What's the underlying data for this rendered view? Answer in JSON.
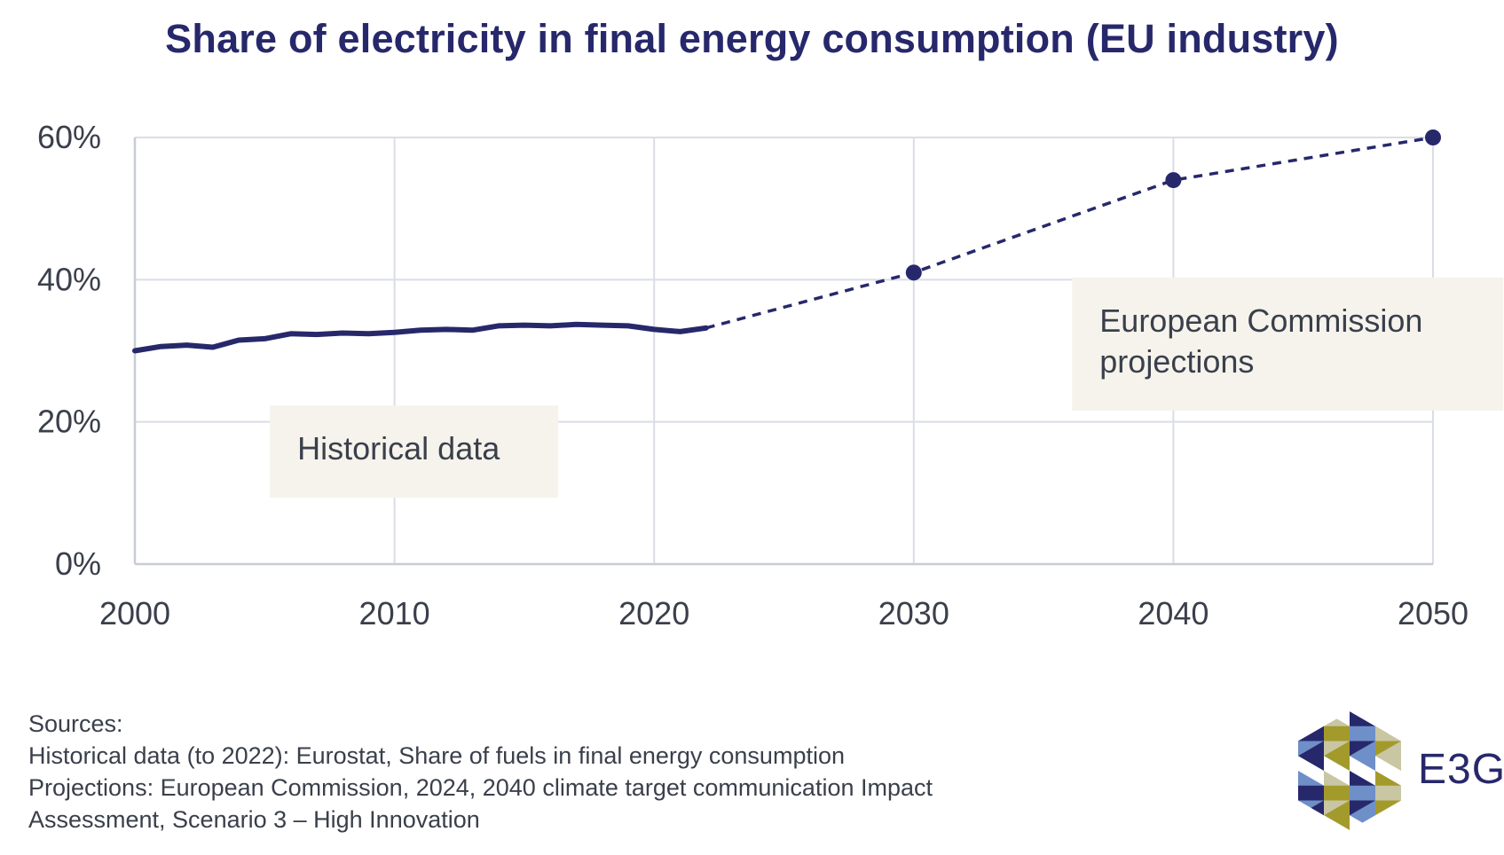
{
  "chart_data": {
    "type": "line",
    "title": "Share of electricity in final energy consumption (EU industry)",
    "xlim": [
      2000,
      2050
    ],
    "ylim": [
      0,
      60
    ],
    "x_ticks": [
      2000,
      2010,
      2020,
      2030,
      2040,
      2050
    ],
    "x_tick_labels": [
      "2000",
      "2010",
      "2020",
      "2030",
      "2040",
      "2050"
    ],
    "y_ticks": [
      0,
      20,
      40,
      60
    ],
    "y_tick_labels": [
      "0%",
      "20%",
      "40%",
      "60%"
    ],
    "grid": true,
    "series": [
      {
        "style": "solid",
        "color": "#27286b",
        "x": [
          2000,
          2001,
          2002,
          2003,
          2004,
          2005,
          2006,
          2007,
          2008,
          2009,
          2010,
          2011,
          2012,
          2013,
          2014,
          2015,
          2016,
          2017,
          2018,
          2019,
          2020,
          2021,
          2022
        ],
        "y": [
          30.0,
          30.6,
          30.8,
          30.5,
          31.5,
          31.7,
          32.4,
          32.3,
          32.5,
          32.4,
          32.6,
          32.9,
          33.0,
          32.9,
          33.5,
          33.6,
          33.5,
          33.7,
          33.6,
          33.5,
          33.0,
          32.7,
          33.2
        ]
      },
      {
        "style": "dashed",
        "color": "#27286b",
        "markers_at": [
          2030,
          2040,
          2050
        ],
        "x": [
          2022,
          2030,
          2040,
          2050
        ],
        "y": [
          33.2,
          41.0,
          54.0,
          60.0
        ]
      }
    ],
    "annotations": [
      {
        "lines": [
          "Historical data"
        ],
        "anchor_x": 2005.2,
        "anchor_y": 22.3
      },
      {
        "lines": [
          "European Commission",
          "projections"
        ],
        "anchor_x": 2036.1,
        "anchor_y": 40.3
      }
    ]
  },
  "sources": {
    "heading": "Sources:",
    "line1": "Historical data (to 2022): Eurostat, Share of fuels in final energy consumption",
    "line2": "Projections: European Commission, 2024, 2040 climate target communication Impact",
    "line3": "Assessment, Scenario 3 – High Innovation"
  },
  "logo": {
    "text": "E3G",
    "colors": {
      "navy": "#27286b",
      "olive": "#a39a2c",
      "blue": "#6f8fc9",
      "beige": "#c9c6a3"
    }
  }
}
